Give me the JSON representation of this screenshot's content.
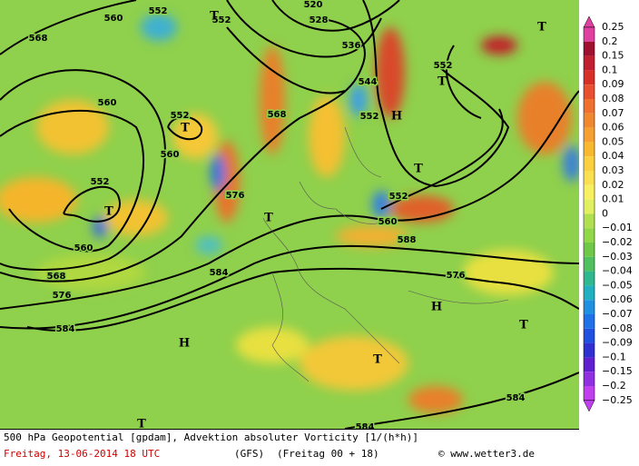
{
  "map": {
    "contour_labels": [
      "552",
      "552",
      "560",
      "568",
      "528",
      "536",
      "520",
      "544",
      "552",
      "552",
      "552",
      "560",
      "560",
      "552",
      "560",
      "568",
      "576",
      "584",
      "576",
      "568",
      "560",
      "588",
      "576",
      "584",
      "584",
      "584",
      "552"
    ],
    "pressure_centers": [
      "T",
      "T",
      "T",
      "H",
      "T",
      "T",
      "T",
      "T",
      "H",
      "T",
      "H",
      "T",
      "T"
    ]
  },
  "legend": {
    "labels": [
      "0.25",
      "0.2",
      "0.15",
      "0.1",
      "0.09",
      "0.08",
      "0.07",
      "0.06",
      "0.05",
      "0.04",
      "0.03",
      "0.02",
      "0.01",
      "0",
      "−0.01",
      "−0.02",
      "−0.03",
      "−0.04",
      "−0.05",
      "−0.06",
      "−0.07",
      "−0.08",
      "−0.09",
      "−0.1",
      "−0.15",
      "−0.2",
      "−0.25"
    ]
  },
  "footer": {
    "description": "500 hPa Geopotential [gpdam], Advektion absoluter Vorticity [1/(h*h)]",
    "date": "Freitag, 13-06-2014  18 UTC",
    "model": "(GFS)",
    "run": "(Freitag 00 + 18)",
    "copyright": "© www.wetter3.de"
  }
}
